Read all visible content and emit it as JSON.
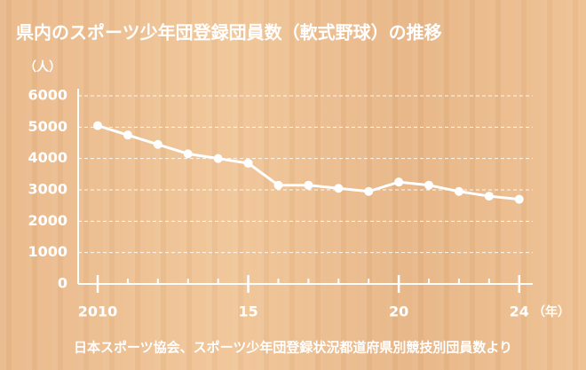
{
  "chart_data": {
    "type": "line",
    "title": "県内のスポーツ少年団登録団員数（軟式野球）の推移",
    "y_label": "（人）",
    "x_label": "（年）",
    "source": "日本スポーツ協会、スポーツ少年団登録状況都道府県別競技別団員数より",
    "x": [
      2010,
      2011,
      2012,
      2013,
      2014,
      2015,
      2016,
      2017,
      2018,
      2019,
      2020,
      2021,
      2022,
      2023,
      2024
    ],
    "series": [
      {
        "color": "#ffffff",
        "values": [
          5050,
          4750,
          4450,
          4150,
          4000,
          3850,
          3150,
          3150,
          3050,
          2950,
          3250,
          3150,
          2950,
          2800,
          2700
        ]
      }
    ],
    "xlim": [
      2009.35,
      2024.45
    ],
    "xticks": [
      2010,
      {
        "value": 2015,
        "label": "15"
      },
      {
        "value": 2020,
        "label": "20"
      },
      {
        "value": 2024,
        "label": "24"
      }
    ],
    "ylim": [
      0,
      6000
    ],
    "yticks": [
      0,
      1000,
      2000,
      3000,
      4000,
      5000,
      6000
    ],
    "grid": true
  }
}
